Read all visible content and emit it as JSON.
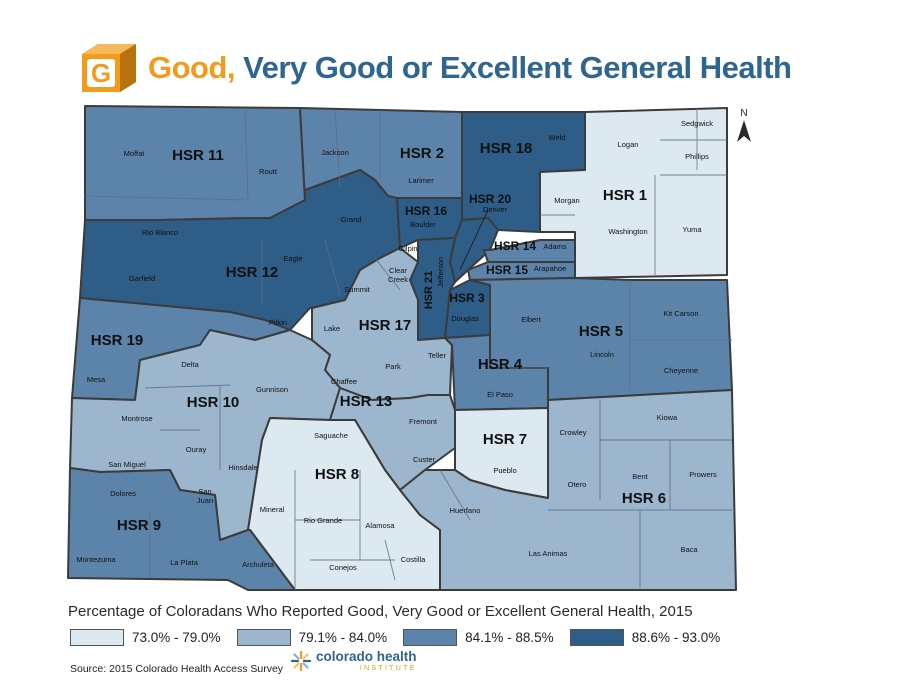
{
  "title": {
    "accent": "Good,",
    "rest": " Very Good or Excellent General Health",
    "badge_letter": "G"
  },
  "colors": {
    "c1": "#dce9f0",
    "c2": "#9cb6ce",
    "c3": "#5c84aa",
    "c4": "#2e5d87",
    "accent": "#f29b1d",
    "brand": "#2e6690"
  },
  "legend": {
    "title": "Percentage of Coloradans Who Reported Good, Very Good or Excellent General Health, 2015",
    "items": [
      {
        "label": "73.0% - 79.0%",
        "color": "#dce9f0"
      },
      {
        "label": "79.1% - 84.0%",
        "color": "#9cb6ce"
      },
      {
        "label": "84.1% - 88.5%",
        "color": "#5c84aa"
      },
      {
        "label": "88.6% - 93.0%",
        "color": "#2e5d87"
      }
    ]
  },
  "source": "Source: 2015 Colorado Health Access Survey",
  "logo": {
    "name": "colorado health",
    "sub": "INSTITUTE"
  },
  "north_label": "N",
  "regions": [
    {
      "id": "HSR 11",
      "label": "HSR 11",
      "level": 3
    },
    {
      "id": "HSR 2",
      "label": "HSR 2",
      "level": 3
    },
    {
      "id": "HSR 18",
      "label": "HSR 18",
      "level": 4
    },
    {
      "id": "HSR 1",
      "label": "HSR 1",
      "level": 1
    },
    {
      "id": "HSR 16",
      "label": "HSR 16",
      "level": 4
    },
    {
      "id": "HSR 20",
      "label": "HSR 20",
      "level": 4
    },
    {
      "id": "HSR 14",
      "label": "HSR 14",
      "level": 3
    },
    {
      "id": "HSR 15",
      "label": "HSR 15",
      "level": 3
    },
    {
      "id": "HSR 21",
      "label": "HSR 21",
      "level": 4
    },
    {
      "id": "HSR 3",
      "label": "HSR 3",
      "level": 4
    },
    {
      "id": "HSR 12",
      "label": "HSR 12",
      "level": 4
    },
    {
      "id": "HSR 19",
      "label": "HSR 19",
      "level": 3
    },
    {
      "id": "HSR 17",
      "label": "HSR 17",
      "level": 2
    },
    {
      "id": "HSR 5",
      "label": "HSR 5",
      "level": 3
    },
    {
      "id": "HSR 4",
      "label": "HSR 4",
      "level": 3
    },
    {
      "id": "HSR 10",
      "label": "HSR 10",
      "level": 2
    },
    {
      "id": "HSR 13",
      "label": "HSR 13",
      "level": 2
    },
    {
      "id": "HSR 7",
      "label": "HSR 7",
      "level": 1
    },
    {
      "id": "HSR 8",
      "label": "HSR 8",
      "level": 1
    },
    {
      "id": "HSR 6",
      "label": "HSR 6",
      "level": 2
    },
    {
      "id": "HSR 9",
      "label": "HSR 9",
      "level": 3
    }
  ],
  "counties": [
    "Moffat",
    "Routt",
    "Jackson",
    "Larimer",
    "Weld",
    "Logan",
    "Sedgwick",
    "Phillips",
    "Morgan",
    "Washington",
    "Yuma",
    "Rio Blanco",
    "Grand",
    "Boulder",
    "Denver",
    "Adams",
    "Arapahoe",
    "Gilpin",
    "Clear Creek",
    "Jefferson",
    "Garfield",
    "Eagle",
    "Summit",
    "Pitkin",
    "Lake",
    "Douglas",
    "Elbert",
    "Kit Carson",
    "Lincoln",
    "Cheyenne",
    "Mesa",
    "Delta",
    "Park",
    "Teller",
    "Chaffee",
    "El Paso",
    "Gunnison",
    "Montrose",
    "Fremont",
    "Kiowa",
    "Crowley",
    "Ouray",
    "Saguache",
    "San Miguel",
    "Custer",
    "Pueblo",
    "Hinsdale",
    "Otero",
    "Bent",
    "Prowers",
    "Dolores",
    "San Juan",
    "Mineral",
    "Rio Grande",
    "Alamosa",
    "Huerfano",
    "Las Animas",
    "Baca",
    "Montezuma",
    "La Plata",
    "Archuleta",
    "Conejos",
    "Costilla"
  ]
}
